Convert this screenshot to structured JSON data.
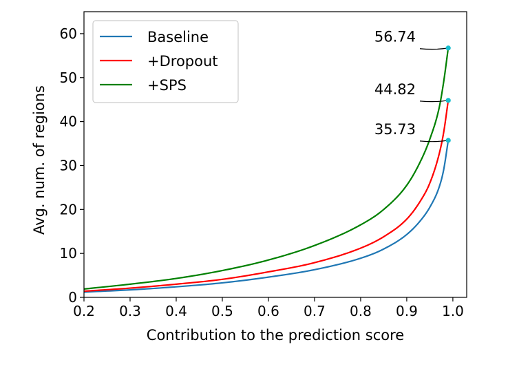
{
  "chart_data": {
    "type": "line",
    "title": "",
    "xlabel": "Contribution to the prediction score",
    "ylabel": "Avg. num. of regions",
    "xlim": [
      0.2,
      1.03
    ],
    "ylim": [
      0,
      65
    ],
    "xticks": [
      0.2,
      0.3,
      0.4,
      0.5,
      0.6,
      0.7,
      0.8,
      0.9,
      1.0
    ],
    "xtick_labels": [
      "0.2",
      "0.3",
      "0.4",
      "0.5",
      "0.6",
      "0.7",
      "0.8",
      "0.9",
      "1.0"
    ],
    "yticks": [
      0,
      10,
      20,
      30,
      40,
      50,
      60
    ],
    "ytick_labels": [
      "0",
      "10",
      "20",
      "30",
      "40",
      "50",
      "60"
    ],
    "grid": false,
    "legend_position": "top-left",
    "x": [
      0.2,
      0.3,
      0.4,
      0.5,
      0.6,
      0.7,
      0.8,
      0.85,
      0.9,
      0.93,
      0.95,
      0.97,
      0.98,
      0.99
    ],
    "series": [
      {
        "name": "Baseline",
        "color": "#1f77b4",
        "values": [
          1.2,
          1.7,
          2.4,
          3.3,
          4.6,
          6.3,
          8.9,
          11.0,
          14.3,
          17.5,
          20.5,
          25.0,
          29.0,
          35.73
        ]
      },
      {
        "name": "+Dropout",
        "color": "#ff0000",
        "values": [
          1.4,
          2.1,
          3.0,
          4.1,
          5.8,
          7.9,
          11.2,
          13.8,
          17.8,
          22.0,
          26.0,
          32.5,
          37.5,
          44.82
        ]
      },
      {
        "name": "+SPS",
        "color": "#008000",
        "values": [
          1.9,
          3.0,
          4.3,
          6.1,
          8.5,
          11.8,
          16.5,
          20.0,
          25.5,
          31.0,
          36.0,
          43.0,
          49.0,
          56.74
        ]
      }
    ],
    "annotations": [
      {
        "text": "56.74",
        "x": 0.99,
        "y": 56.74,
        "marker_color": "#17becf"
      },
      {
        "text": "44.82",
        "x": 0.99,
        "y": 44.82,
        "marker_color": "#17becf"
      },
      {
        "text": "35.73",
        "x": 0.99,
        "y": 35.73,
        "marker_color": "#17becf"
      }
    ]
  }
}
